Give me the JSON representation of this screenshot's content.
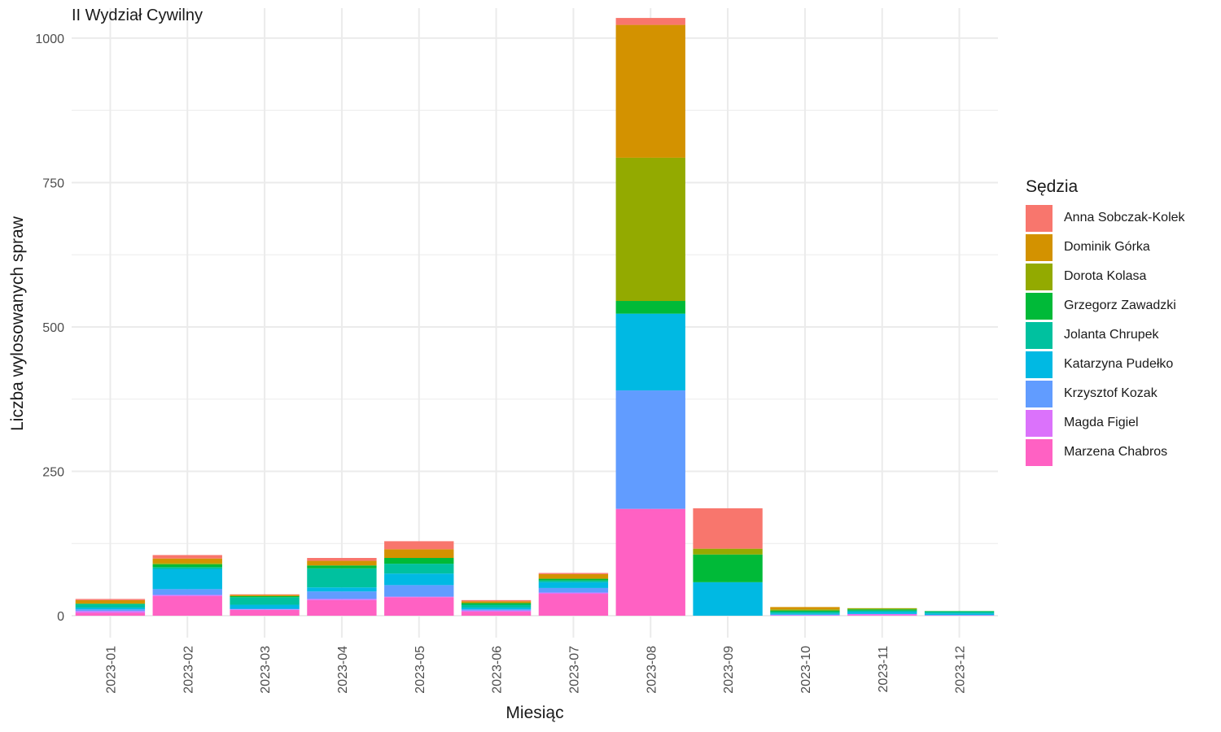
{
  "chart_data": {
    "type": "bar",
    "stacked": true,
    "title": "II Wydział Cywilny",
    "xlabel": "Miesiąc",
    "ylabel": "Liczba wylosowanych spraw",
    "ylim": [
      -38,
      1052
    ],
    "y_ticks": [
      0,
      250,
      500,
      750,
      1000
    ],
    "grid": true,
    "legend": {
      "title": "Sędzia",
      "position": "right"
    },
    "categories": [
      "2023-01",
      "2023-02",
      "2023-03",
      "2023-04",
      "2023-05",
      "2023-06",
      "2023-07",
      "2023-08",
      "2023-09",
      "2023-10",
      "2023-11",
      "2023-12"
    ],
    "series": [
      {
        "name": "Anna Sobczak-Kolek",
        "color": "#F8766D",
        "values": [
          2,
          6,
          1,
          5,
          14,
          2,
          2,
          12,
          70,
          0,
          0,
          0
        ]
      },
      {
        "name": "Dominik Górka",
        "color": "#D39200",
        "values": [
          6,
          8,
          2,
          8,
          15,
          3,
          8,
          230,
          0,
          4,
          0,
          0
        ]
      },
      {
        "name": "Dorota Kolasa",
        "color": "#93AA00",
        "values": [
          0,
          2,
          0,
          0,
          0,
          0,
          0,
          248,
          10,
          2,
          2,
          0
        ]
      },
      {
        "name": "Grzegorz Zawadzki",
        "color": "#00BA38",
        "values": [
          1,
          5,
          2,
          5,
          10,
          3,
          3,
          22,
          48,
          2,
          2,
          1
        ]
      },
      {
        "name": "Jolanta Chrupek",
        "color": "#00C19F",
        "values": [
          6,
          3,
          13,
          33,
          17,
          5,
          3,
          0,
          0,
          3,
          2,
          3
        ]
      },
      {
        "name": "Katarzyna Pudełko",
        "color": "#00B9E3",
        "values": [
          3,
          35,
          7,
          7,
          20,
          3,
          10,
          133,
          58,
          2,
          4,
          3
        ]
      },
      {
        "name": "Krzysztof Kozak",
        "color": "#619CFF",
        "values": [
          3,
          10,
          1,
          13,
          20,
          2,
          8,
          205,
          0,
          1,
          0,
          0
        ]
      },
      {
        "name": "Magda Figiel",
        "color": "#DB72FB",
        "values": [
          3,
          2,
          1,
          2,
          1,
          2,
          2,
          0,
          0,
          1,
          2,
          1
        ]
      },
      {
        "name": "Marzena Chabros",
        "color": "#FF61C3",
        "values": [
          5,
          34,
          10,
          27,
          32,
          7,
          38,
          185,
          0,
          0,
          1,
          0
        ]
      }
    ]
  }
}
